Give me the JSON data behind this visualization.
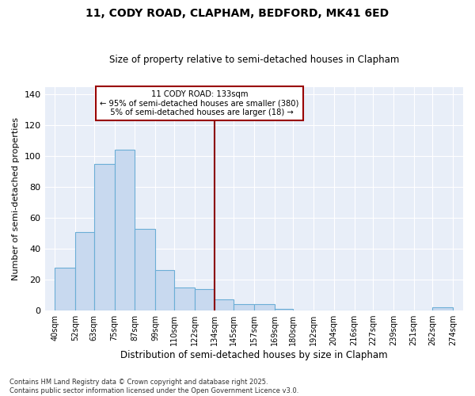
{
  "title1": "11, CODY ROAD, CLAPHAM, BEDFORD, MK41 6ED",
  "title2": "Size of property relative to semi-detached houses in Clapham",
  "xlabel": "Distribution of semi-detached houses by size in Clapham",
  "ylabel": "Number of semi-detached properties",
  "footnote": "Contains HM Land Registry data © Crown copyright and database right 2025.\nContains public sector information licensed under the Open Government Licence v3.0.",
  "bar_left_edges": [
    40,
    52,
    63,
    75,
    87,
    99,
    110,
    122,
    134,
    145,
    157,
    169,
    180,
    192,
    204,
    216,
    227,
    239,
    251,
    262
  ],
  "bar_widths": [
    12,
    11,
    12,
    12,
    12,
    11,
    12,
    12,
    11,
    12,
    12,
    11,
    12,
    12,
    12,
    11,
    12,
    12,
    11,
    12
  ],
  "bar_heights": [
    28,
    51,
    95,
    104,
    53,
    26,
    15,
    14,
    7,
    4,
    4,
    1,
    0,
    0,
    0,
    0,
    0,
    0,
    0,
    2
  ],
  "xtick_labels": [
    "40sqm",
    "52sqm",
    "63sqm",
    "75sqm",
    "87sqm",
    "99sqm",
    "110sqm",
    "122sqm",
    "134sqm",
    "145sqm",
    "157sqm",
    "169sqm",
    "180sqm",
    "192sqm",
    "204sqm",
    "216sqm",
    "227sqm",
    "239sqm",
    "251sqm",
    "262sqm",
    "274sqm"
  ],
  "xtick_positions": [
    40,
    52,
    63,
    75,
    87,
    99,
    110,
    122,
    134,
    145,
    157,
    169,
    180,
    192,
    204,
    216,
    227,
    239,
    251,
    262,
    274
  ],
  "bar_color": "#c8d9ef",
  "bar_edge_color": "#6baed6",
  "property_x": 134,
  "annotation_line1": "11 CODY ROAD: 133sqm",
  "annotation_line2": "← 95% of semi-detached houses are smaller (380)",
  "annotation_line3": "  5% of semi-detached houses are larger (18) →",
  "vline_color": "#8b0000",
  "annotation_box_color": "#ffffff",
  "annotation_box_edge": "#990000",
  "background_color": "#e8eef8",
  "ylim": [
    0,
    145
  ],
  "xlim": [
    34,
    280
  ],
  "yticks": [
    0,
    20,
    40,
    60,
    80,
    100,
    120,
    140
  ]
}
